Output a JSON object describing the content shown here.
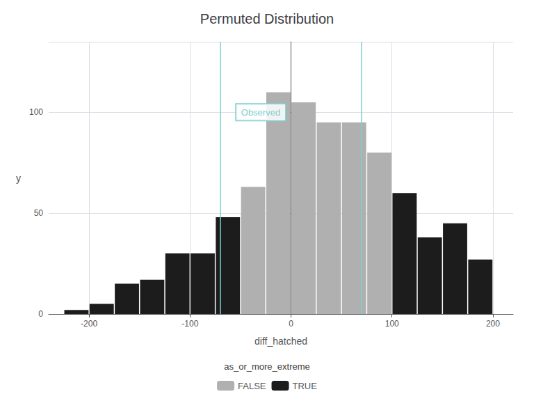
{
  "chart_data": {
    "type": "bar",
    "title": "Permuted Distribution",
    "xlabel": "diff_hatched",
    "ylabel": "y",
    "x": [
      -212.5,
      -187.5,
      -162.5,
      -137.5,
      -112.5,
      -87.5,
      -62.5,
      -37.5,
      -12.5,
      12.5,
      37.5,
      62.5,
      87.5,
      112.5,
      137.5,
      162.5,
      187.5
    ],
    "series": [
      {
        "name": "FALSE",
        "color": "#b0b0b0",
        "values": [
          null,
          null,
          null,
          null,
          null,
          null,
          null,
          63,
          110,
          105,
          95,
          95,
          80,
          null,
          null,
          null,
          null
        ]
      },
      {
        "name": "TRUE",
        "color": "#1c1c1c",
        "values": [
          2,
          5,
          15,
          17,
          30,
          30,
          48,
          null,
          null,
          null,
          null,
          null,
          null,
          60,
          38,
          45,
          27
        ]
      }
    ],
    "xlim": [
      -240,
      220
    ],
    "xticks": [
      -200,
      -100,
      0,
      100,
      200
    ],
    "ylim": [
      0,
      135
    ],
    "yticks": [
      0,
      50,
      100
    ],
    "grid": true,
    "legend": "bottom",
    "legend_title": "as_or_more_extreme",
    "vlines": {
      "x": [
        -70,
        70
      ],
      "color": "#7ecfcf"
    },
    "annotations": [
      {
        "text": "Observed",
        "x": -30,
        "y": 100,
        "color": "#7ecfcf"
      }
    ]
  }
}
